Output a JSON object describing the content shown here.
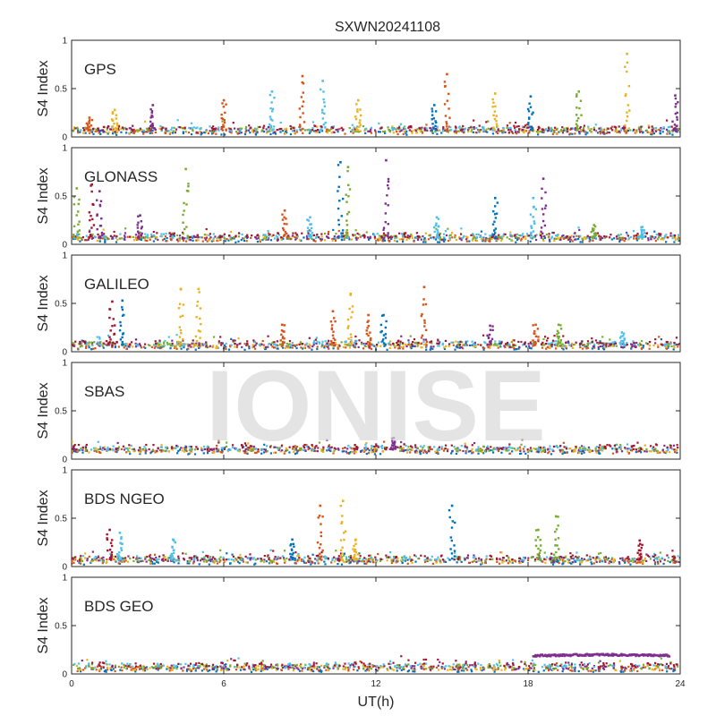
{
  "title": "SXWN20241108",
  "watermark": "IONISE",
  "colors": [
    "#0072BD",
    "#D95319",
    "#EDB120",
    "#7E2F8E",
    "#77AC30",
    "#4DBEEE",
    "#A2142F"
  ],
  "chart_data": {
    "type": "scatter",
    "xlabel": "UT(h)",
    "ylabel": "S4 Index",
    "xlim": [
      0,
      24
    ],
    "ylim": [
      0,
      1
    ],
    "xticks": [
      "0",
      "6",
      "12",
      "18",
      "24"
    ],
    "yticks": [
      "0",
      "0.5",
      "1"
    ],
    "panels": [
      {
        "name": "GPS",
        "baseline": 0.07,
        "spikes": [
          [
            0.7,
            0.2,
            1
          ],
          [
            1.7,
            0.28,
            2
          ],
          [
            3.2,
            0.33,
            3
          ],
          [
            6.0,
            0.38,
            1
          ],
          [
            7.9,
            0.47,
            5
          ],
          [
            9.1,
            0.63,
            1
          ],
          [
            9.9,
            0.58,
            5
          ],
          [
            11.3,
            0.38,
            2
          ],
          [
            14.3,
            0.33,
            0
          ],
          [
            14.8,
            0.65,
            1
          ],
          [
            16.7,
            0.45,
            2
          ],
          [
            18.1,
            0.42,
            0
          ],
          [
            20.0,
            0.47,
            4
          ],
          [
            21.9,
            0.86,
            2
          ],
          [
            23.8,
            0.43,
            3
          ]
        ]
      },
      {
        "name": "GLONASS",
        "baseline": 0.07,
        "spikes": [
          [
            0.2,
            0.58,
            4
          ],
          [
            0.8,
            0.62,
            6
          ],
          [
            1.1,
            0.55,
            3
          ],
          [
            2.7,
            0.3,
            3
          ],
          [
            4.5,
            0.78,
            4
          ],
          [
            8.4,
            0.35,
            1
          ],
          [
            9.4,
            0.28,
            5
          ],
          [
            10.6,
            0.85,
            0
          ],
          [
            10.9,
            0.8,
            4
          ],
          [
            12.4,
            0.87,
            3
          ],
          [
            14.4,
            0.28,
            5
          ],
          [
            16.7,
            0.48,
            0
          ],
          [
            18.2,
            0.48,
            5
          ],
          [
            18.6,
            0.68,
            3
          ],
          [
            20.6,
            0.2,
            4
          ],
          [
            22.5,
            0.18,
            5
          ]
        ]
      },
      {
        "name": "GALILEO",
        "baseline": 0.07,
        "spikes": [
          [
            1.6,
            0.52,
            6
          ],
          [
            2.0,
            0.53,
            0
          ],
          [
            4.3,
            0.65,
            2
          ],
          [
            5.0,
            0.65,
            2
          ],
          [
            8.3,
            0.28,
            1
          ],
          [
            10.3,
            0.42,
            1
          ],
          [
            11.0,
            0.6,
            2
          ],
          [
            11.7,
            0.38,
            1
          ],
          [
            12.3,
            0.38,
            0
          ],
          [
            13.9,
            0.67,
            1
          ],
          [
            16.5,
            0.27,
            3
          ],
          [
            18.3,
            0.28,
            1
          ],
          [
            19.2,
            0.28,
            4
          ],
          [
            21.7,
            0.2,
            5
          ]
        ]
      },
      {
        "name": "SBAS",
        "baseline": 0.1,
        "spikes": [
          [
            12.7,
            0.22,
            3
          ]
        ]
      },
      {
        "name": "BDS NGEO",
        "baseline": 0.07,
        "spikes": [
          [
            1.5,
            0.38,
            6
          ],
          [
            1.9,
            0.35,
            5
          ],
          [
            4.0,
            0.28,
            5
          ],
          [
            8.7,
            0.28,
            0
          ],
          [
            9.8,
            0.63,
            1
          ],
          [
            10.7,
            0.68,
            2
          ],
          [
            11.2,
            0.28,
            2
          ],
          [
            15.0,
            0.63,
            0
          ],
          [
            18.4,
            0.38,
            4
          ],
          [
            19.1,
            0.52,
            4
          ],
          [
            22.4,
            0.27,
            6
          ]
        ]
      },
      {
        "name": "BDS GEO",
        "baseline": 0.07,
        "spikes": [],
        "bands": [
          [
            18.2,
            23.6,
            0.2,
            3
          ]
        ]
      }
    ]
  }
}
